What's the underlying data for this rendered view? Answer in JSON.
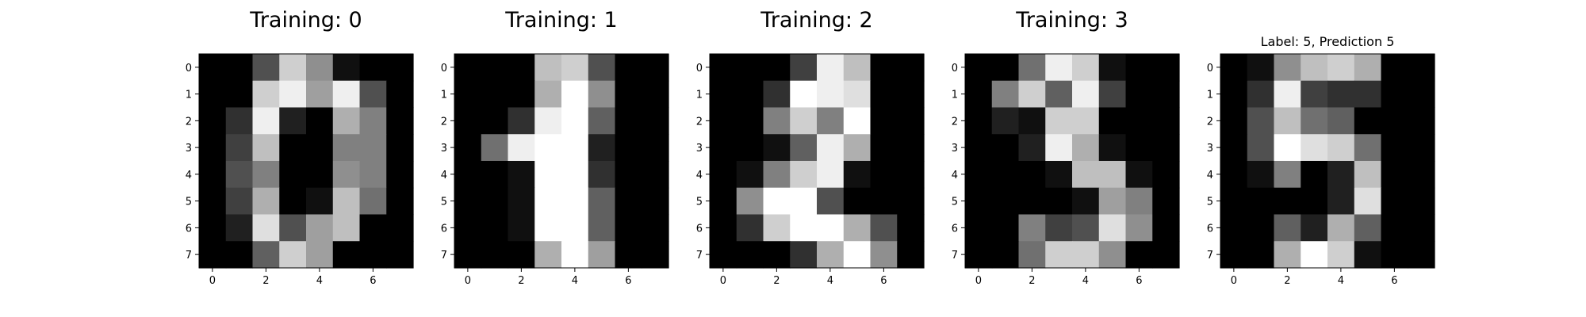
{
  "chart_data": [
    {
      "type": "heatmap",
      "title": "Training: 0",
      "colormap": "gray",
      "vmin": 0,
      "vmax": 16,
      "x_ticks": [
        0,
        2,
        4,
        6
      ],
      "y_ticks": [
        0,
        1,
        2,
        3,
        4,
        5,
        6,
        7
      ],
      "xlabel": "",
      "ylabel": "",
      "grid": false,
      "values": [
        [
          0,
          0,
          5,
          13,
          9,
          1,
          0,
          0
        ],
        [
          0,
          0,
          13,
          15,
          10,
          15,
          5,
          0
        ],
        [
          0,
          3,
          15,
          2,
          0,
          11,
          8,
          0
        ],
        [
          0,
          4,
          12,
          0,
          0,
          8,
          8,
          0
        ],
        [
          0,
          5,
          8,
          0,
          0,
          9,
          8,
          0
        ],
        [
          0,
          4,
          11,
          0,
          1,
          12,
          7,
          0
        ],
        [
          0,
          2,
          14,
          5,
          10,
          12,
          0,
          0
        ],
        [
          0,
          0,
          6,
          13,
          10,
          0,
          0,
          0
        ]
      ]
    },
    {
      "type": "heatmap",
      "title": "Training: 1",
      "colormap": "gray",
      "vmin": 0,
      "vmax": 16,
      "x_ticks": [
        0,
        2,
        4,
        6
      ],
      "y_ticks": [
        0,
        1,
        2,
        3,
        4,
        5,
        6,
        7
      ],
      "xlabel": "",
      "ylabel": "",
      "grid": false,
      "values": [
        [
          0,
          0,
          0,
          12,
          13,
          5,
          0,
          0
        ],
        [
          0,
          0,
          0,
          11,
          16,
          9,
          0,
          0
        ],
        [
          0,
          0,
          3,
          15,
          16,
          6,
          0,
          0
        ],
        [
          0,
          7,
          15,
          16,
          16,
          2,
          0,
          0
        ],
        [
          0,
          0,
          1,
          16,
          16,
          3,
          0,
          0
        ],
        [
          0,
          0,
          1,
          16,
          16,
          6,
          0,
          0
        ],
        [
          0,
          0,
          1,
          16,
          16,
          6,
          0,
          0
        ],
        [
          0,
          0,
          0,
          11,
          16,
          10,
          0,
          0
        ]
      ]
    },
    {
      "type": "heatmap",
      "title": "Training: 2",
      "colormap": "gray",
      "vmin": 0,
      "vmax": 16,
      "x_ticks": [
        0,
        2,
        4,
        6
      ],
      "y_ticks": [
        0,
        1,
        2,
        3,
        4,
        5,
        6,
        7
      ],
      "xlabel": "",
      "ylabel": "",
      "grid": false,
      "values": [
        [
          0,
          0,
          0,
          4,
          15,
          12,
          0,
          0
        ],
        [
          0,
          0,
          3,
          16,
          15,
          14,
          0,
          0
        ],
        [
          0,
          0,
          8,
          13,
          8,
          16,
          0,
          0
        ],
        [
          0,
          0,
          1,
          6,
          15,
          11,
          0,
          0
        ],
        [
          0,
          1,
          8,
          13,
          15,
          1,
          0,
          0
        ],
        [
          0,
          9,
          16,
          16,
          5,
          0,
          0,
          0
        ],
        [
          0,
          3,
          13,
          16,
          16,
          11,
          5,
          0
        ],
        [
          0,
          0,
          0,
          3,
          11,
          16,
          9,
          0
        ]
      ]
    },
    {
      "type": "heatmap",
      "title": "Training: 3",
      "colormap": "gray",
      "vmin": 0,
      "vmax": 16,
      "x_ticks": [
        0,
        2,
        4,
        6
      ],
      "y_ticks": [
        0,
        1,
        2,
        3,
        4,
        5,
        6,
        7
      ],
      "xlabel": "",
      "ylabel": "",
      "grid": false,
      "values": [
        [
          0,
          0,
          7,
          15,
          13,
          1,
          0,
          0
        ],
        [
          0,
          8,
          13,
          6,
          15,
          4,
          0,
          0
        ],
        [
          0,
          2,
          1,
          13,
          13,
          0,
          0,
          0
        ],
        [
          0,
          0,
          2,
          15,
          11,
          1,
          0,
          0
        ],
        [
          0,
          0,
          0,
          1,
          12,
          12,
          1,
          0
        ],
        [
          0,
          0,
          0,
          0,
          1,
          10,
          8,
          0
        ],
        [
          0,
          0,
          8,
          4,
          5,
          14,
          9,
          0
        ],
        [
          0,
          0,
          7,
          13,
          13,
          9,
          0,
          0
        ]
      ]
    },
    {
      "type": "heatmap",
      "title": "Label: 5, Prediction 5",
      "colormap": "gray",
      "vmin": 0,
      "vmax": 16,
      "x_ticks": [
        0,
        2,
        4,
        6
      ],
      "y_ticks": [
        0,
        1,
        2,
        3,
        4,
        5,
        6,
        7
      ],
      "xlabel": "",
      "ylabel": "",
      "grid": false,
      "values": [
        [
          0,
          1,
          9,
          12,
          13,
          11,
          0,
          0
        ],
        [
          0,
          3,
          15,
          4,
          3,
          3,
          0,
          0
        ],
        [
          0,
          5,
          12,
          7,
          6,
          0,
          0,
          0
        ],
        [
          0,
          5,
          16,
          14,
          13,
          7,
          0,
          0
        ],
        [
          0,
          1,
          8,
          0,
          2,
          12,
          0,
          0
        ],
        [
          0,
          0,
          0,
          0,
          2,
          14,
          0,
          0
        ],
        [
          0,
          0,
          6,
          2,
          11,
          6,
          0,
          0
        ],
        [
          0,
          0,
          11,
          16,
          13,
          1,
          0,
          0
        ]
      ]
    }
  ]
}
